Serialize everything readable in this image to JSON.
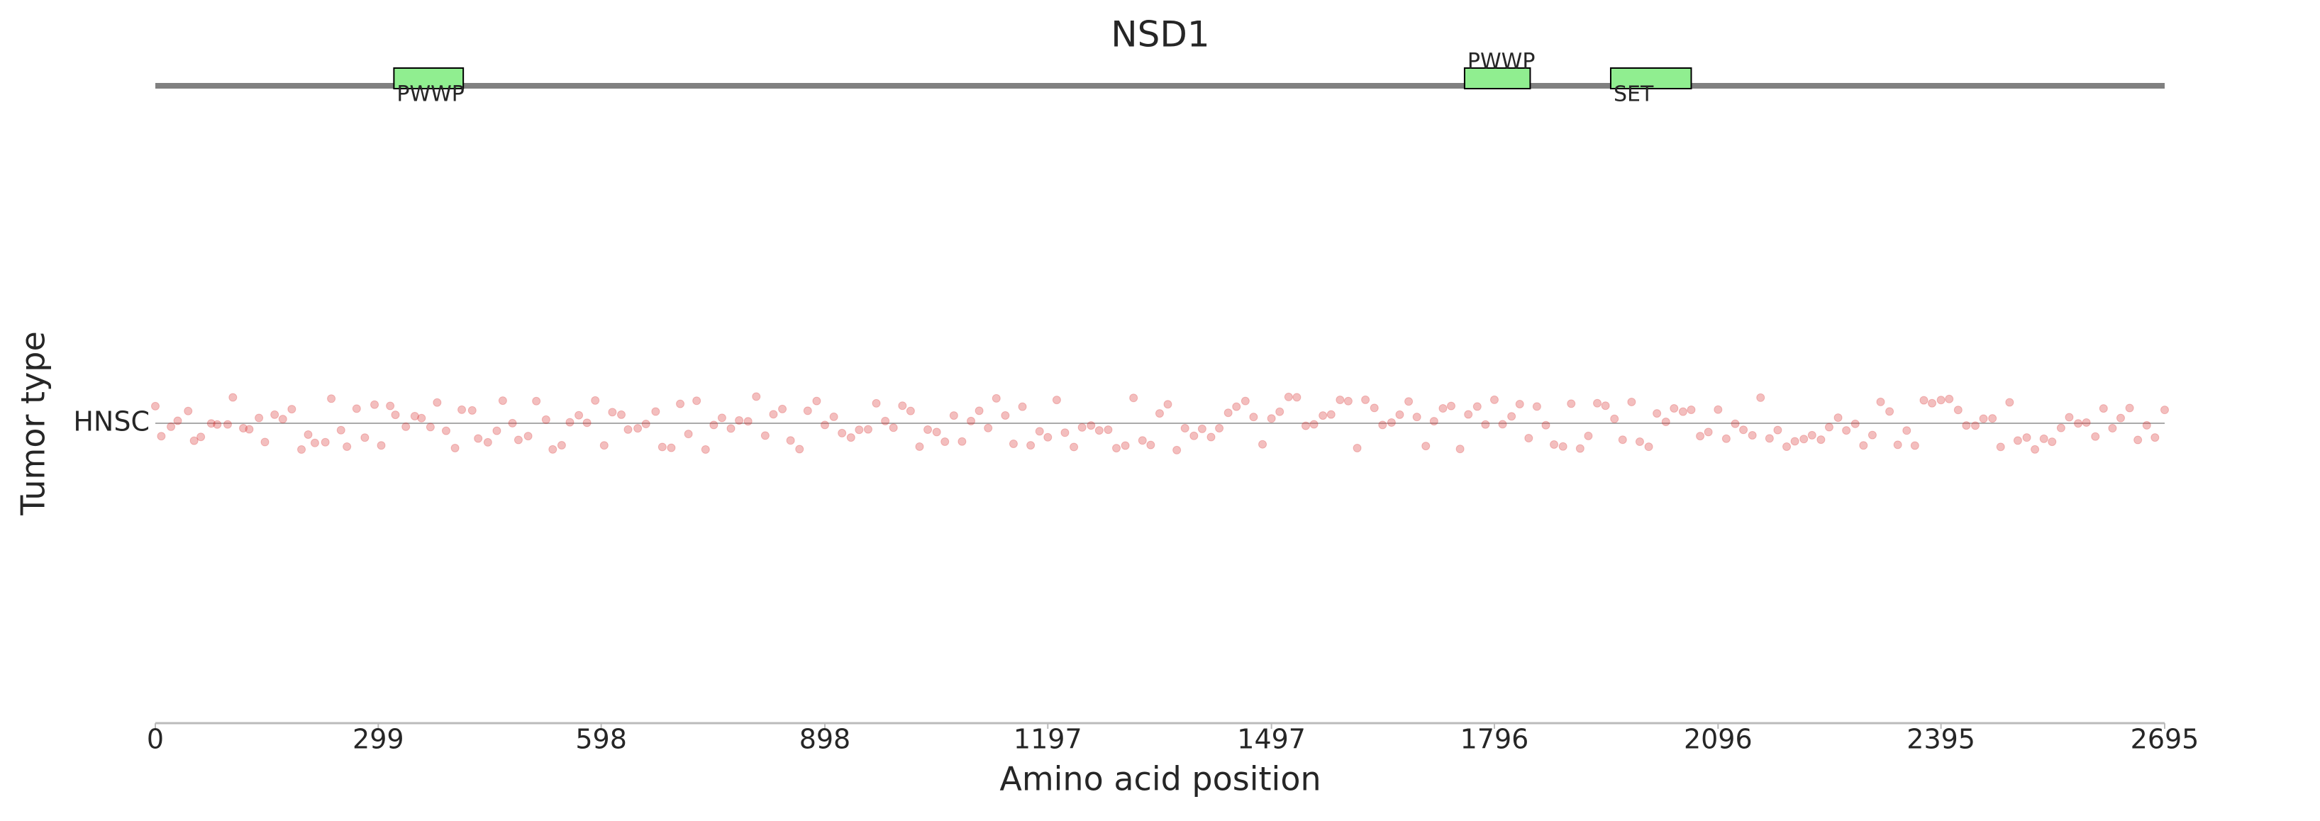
{
  "chart_data": {
    "type": "strip",
    "title": "NSD1",
    "xlabel": "Amino acid position",
    "ylabel": "Tumor type",
    "categories": [
      "HNSC"
    ],
    "color": "#d62728",
    "xlim": [
      0,
      2695
    ],
    "xticks": [
      0,
      299,
      598,
      898,
      1197,
      1497,
      1796,
      2096,
      2395,
      2695
    ],
    "domains": [
      {
        "name": "PWWP",
        "start": 320,
        "end": 413
      },
      {
        "name": "PWWP",
        "start": 1756,
        "end": 1844
      },
      {
        "name": "SET",
        "start": 1952,
        "end": 2060
      }
    ],
    "x": [
      0,
      8,
      21,
      30,
      44,
      52,
      61,
      75,
      83,
      97,
      104,
      118,
      126,
      139,
      147,
      160,
      171,
      183,
      196,
      205,
      214,
      228,
      236,
      249,
      257,
      270,
      281,
      294,
      303,
      315,
      322,
      336,
      348,
      357,
      369,
      378,
      390,
      402,
      411,
      425,
      433,
      446,
      458,
      466,
      479,
      487,
      500,
      511,
      524,
      533,
      545,
      556,
      568,
      579,
      590,
      602,
      613,
      625,
      634,
      647,
      658,
      671,
      680,
      692,
      704,
      715,
      726,
      738,
      749,
      760,
      772,
      783,
      795,
      806,
      818,
      829,
      841,
      852,
      864,
      875,
      887,
      898,
      910,
      921,
      933,
      944,
      956,
      967,
      979,
      990,
      1002,
      1013,
      1025,
      1036,
      1048,
      1059,
      1071,
      1082,
      1094,
      1105,
      1117,
      1128,
      1140,
      1151,
      1163,
      1174,
      1186,
      1197,
      1209,
      1220,
      1232,
      1243,
      1255,
      1266,
      1278,
      1289,
      1301,
      1312,
      1324,
      1335,
      1347,
      1358,
      1370,
      1381,
      1393,
      1404,
      1416,
      1427,
      1439,
      1450,
      1462,
      1473,
      1485,
      1497,
      1508,
      1520,
      1531,
      1543,
      1554,
      1566,
      1577,
      1589,
      1600,
      1612,
      1623,
      1635,
      1646,
      1658,
      1669,
      1681,
      1692,
      1704,
      1715,
      1727,
      1738,
      1750,
      1761,
      1773,
      1784,
      1796,
      1807,
      1819,
      1830,
      1842,
      1853,
      1865,
      1876,
      1888,
      1899,
      1911,
      1922,
      1934,
      1945,
      1957,
      1968,
      1980,
      1991,
      2003,
      2014,
      2026,
      2037,
      2049,
      2060,
      2072,
      2083,
      2096,
      2107,
      2119,
      2130,
      2142,
      2153,
      2165,
      2176,
      2188,
      2199,
      2211,
      2222,
      2234,
      2245,
      2257,
      2268,
      2280,
      2291,
      2303,
      2314,
      2326,
      2337,
      2349,
      2360,
      2372,
      2383,
      2395,
      2406,
      2418,
      2429,
      2441,
      2452,
      2464,
      2475,
      2487,
      2498,
      2510,
      2521,
      2533,
      2544,
      2556,
      2567,
      2579,
      2590,
      2602,
      2613,
      2625,
      2636,
      2648,
      2659,
      2671,
      2682,
      2695
    ]
  }
}
